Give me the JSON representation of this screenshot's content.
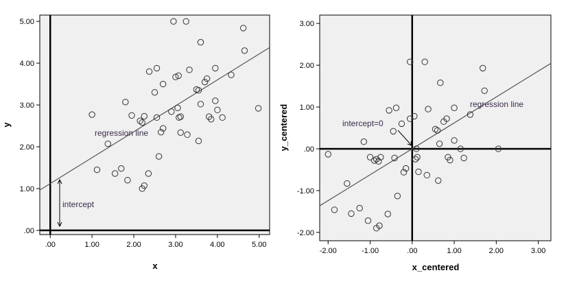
{
  "colors": {
    "plot_background": "#f0f0f0",
    "frame": "#000000",
    "regression_line": "#555555",
    "marker": "#333333"
  },
  "chart_data": [
    {
      "type": "scatter",
      "xlabel": "x",
      "ylabel": "y",
      "xlim": [
        -0.25,
        5.25
      ],
      "ylim": [
        -0.1,
        5.15
      ],
      "x_ticks": [
        0,
        1,
        2,
        3,
        4,
        5
      ],
      "x_tick_labels": [
        ".00",
        "1.00",
        "2.00",
        "3.00",
        "4.00",
        "5.00"
      ],
      "y_ticks": [
        0,
        1,
        2,
        3,
        4,
        5
      ],
      "y_tick_labels": [
        ".00",
        "1.00",
        "2.00",
        "3.00",
        "4.00",
        "5.00"
      ],
      "grid": false,
      "reference_lines": {
        "x": 0,
        "y": 0
      },
      "regression_line": {
        "intercept": 1.12,
        "slope": 0.62
      },
      "annotations": [
        "regression line",
        "intercept"
      ],
      "points": [
        {
          "x": 2.95,
          "y": 5.0
        },
        {
          "x": 3.25,
          "y": 5.0
        },
        {
          "x": 4.62,
          "y": 4.84
        },
        {
          "x": 3.6,
          "y": 4.5
        },
        {
          "x": 4.65,
          "y": 4.3
        },
        {
          "x": 2.55,
          "y": 3.88
        },
        {
          "x": 2.37,
          "y": 3.8
        },
        {
          "x": 3.33,
          "y": 3.84
        },
        {
          "x": 3.95,
          "y": 3.88
        },
        {
          "x": 4.33,
          "y": 3.72
        },
        {
          "x": 3.0,
          "y": 3.67
        },
        {
          "x": 3.07,
          "y": 3.7
        },
        {
          "x": 3.75,
          "y": 3.63
        },
        {
          "x": 3.7,
          "y": 3.55
        },
        {
          "x": 2.7,
          "y": 3.5
        },
        {
          "x": 3.5,
          "y": 3.37
        },
        {
          "x": 3.55,
          "y": 3.35
        },
        {
          "x": 2.5,
          "y": 3.3
        },
        {
          "x": 3.95,
          "y": 3.1
        },
        {
          "x": 1.8,
          "y": 3.07
        },
        {
          "x": 3.6,
          "y": 3.02
        },
        {
          "x": 3.05,
          "y": 2.93
        },
        {
          "x": 2.9,
          "y": 2.84
        },
        {
          "x": 4.0,
          "y": 2.88
        },
        {
          "x": 1.0,
          "y": 2.77
        },
        {
          "x": 1.95,
          "y": 2.75
        },
        {
          "x": 2.25,
          "y": 2.73
        },
        {
          "x": 2.55,
          "y": 2.7
        },
        {
          "x": 3.08,
          "y": 2.7
        },
        {
          "x": 3.12,
          "y": 2.72
        },
        {
          "x": 3.8,
          "y": 2.72
        },
        {
          "x": 3.85,
          "y": 2.66
        },
        {
          "x": 4.12,
          "y": 2.7
        },
        {
          "x": 2.15,
          "y": 2.62
        },
        {
          "x": 2.2,
          "y": 2.58
        },
        {
          "x": 2.7,
          "y": 2.44
        },
        {
          "x": 2.65,
          "y": 2.35
        },
        {
          "x": 3.12,
          "y": 2.34
        },
        {
          "x": 3.28,
          "y": 2.29
        },
        {
          "x": 3.55,
          "y": 2.14
        },
        {
          "x": 1.38,
          "y": 2.07
        },
        {
          "x": 4.98,
          "y": 2.92
        },
        {
          "x": 2.6,
          "y": 1.77
        },
        {
          "x": 1.7,
          "y": 1.48
        },
        {
          "x": 1.12,
          "y": 1.45
        },
        {
          "x": 1.55,
          "y": 1.36
        },
        {
          "x": 2.35,
          "y": 1.36
        },
        {
          "x": 1.85,
          "y": 1.2
        },
        {
          "x": 2.25,
          "y": 1.07
        },
        {
          "x": 2.2,
          "y": 1.0
        }
      ]
    },
    {
      "type": "scatter",
      "xlabel": "x_centered",
      "ylabel": "y_centered",
      "xlim": [
        -2.2,
        3.3
      ],
      "ylim": [
        -2.2,
        3.2
      ],
      "x_ticks": [
        -2,
        -1,
        0,
        1,
        2,
        3
      ],
      "x_tick_labels": [
        "-2.00",
        "-1.00",
        ".00",
        "1.00",
        "2.00",
        "3.00"
      ],
      "y_ticks": [
        -2,
        -1,
        0,
        1,
        2,
        3
      ],
      "y_tick_labels": [
        "-2.00",
        "-1.00",
        ".00",
        "1.00",
        "2.00",
        "3.00"
      ],
      "grid": false,
      "reference_lines": {
        "x": 0,
        "y": 0
      },
      "regression_line": {
        "intercept": 0,
        "slope": 0.62
      },
      "annotations": [
        "regression line",
        "intercept=0"
      ],
      "points": [
        {
          "x": -0.05,
          "y": 2.08
        },
        {
          "x": 0.3,
          "y": 2.08
        },
        {
          "x": 1.68,
          "y": 1.93
        },
        {
          "x": 0.67,
          "y": 1.58
        },
        {
          "x": 1.72,
          "y": 1.39
        },
        {
          "x": -0.38,
          "y": 0.98
        },
        {
          "x": -0.55,
          "y": 0.92
        },
        {
          "x": 0.38,
          "y": 0.95
        },
        {
          "x": 1.0,
          "y": 0.98
        },
        {
          "x": 1.38,
          "y": 0.82
        },
        {
          "x": 0.05,
          "y": 0.78
        },
        {
          "x": -0.05,
          "y": 0.72
        },
        {
          "x": 0.82,
          "y": 0.72
        },
        {
          "x": 0.75,
          "y": 0.65
        },
        {
          "x": -0.25,
          "y": 0.6
        },
        {
          "x": 0.55,
          "y": 0.47
        },
        {
          "x": 0.6,
          "y": 0.44
        },
        {
          "x": -0.45,
          "y": 0.42
        },
        {
          "x": 1.0,
          "y": 0.2
        },
        {
          "x": -1.15,
          "y": 0.17
        },
        {
          "x": 0.65,
          "y": 0.12
        },
        {
          "x": 1.15,
          "y": 0.0
        },
        {
          "x": 2.05,
          "y": 0.0
        },
        {
          "x": 0.1,
          "y": 0.0
        },
        {
          "x": -2.0,
          "y": -0.13
        },
        {
          "x": -0.75,
          "y": -0.2
        },
        {
          "x": 0.85,
          "y": -0.2
        },
        {
          "x": 0.12,
          "y": -0.2
        },
        {
          "x": 1.23,
          "y": -0.22
        },
        {
          "x": -0.85,
          "y": -0.25
        },
        {
          "x": 0.9,
          "y": -0.27
        },
        {
          "x": 0.08,
          "y": -0.25
        },
        {
          "x": -0.8,
          "y": -0.3
        },
        {
          "x": -1.0,
          "y": -0.2
        },
        {
          "x": -0.42,
          "y": -0.22
        },
        {
          "x": -0.9,
          "y": -0.28
        },
        {
          "x": -0.15,
          "y": -0.47
        },
        {
          "x": -0.2,
          "y": -0.56
        },
        {
          "x": 0.15,
          "y": -0.55
        },
        {
          "x": 0.35,
          "y": -0.63
        },
        {
          "x": 0.62,
          "y": -0.76
        },
        {
          "x": -1.55,
          "y": -0.83
        },
        {
          "x": -0.35,
          "y": -1.13
        },
        {
          "x": -1.25,
          "y": -1.42
        },
        {
          "x": -1.85,
          "y": -1.46
        },
        {
          "x": -1.45,
          "y": -1.55
        },
        {
          "x": -0.58,
          "y": -1.56
        },
        {
          "x": -1.05,
          "y": -1.72
        },
        {
          "x": -0.78,
          "y": -1.84
        },
        {
          "x": -0.85,
          "y": -1.9
        }
      ]
    }
  ]
}
